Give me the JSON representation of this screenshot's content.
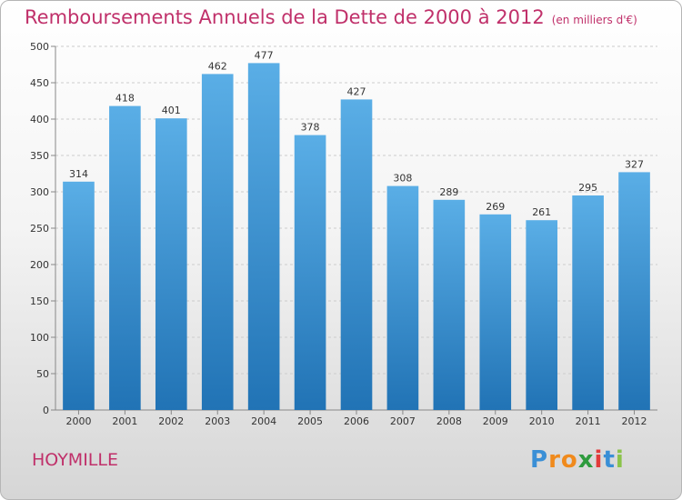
{
  "chart_data": {
    "type": "bar",
    "title": "Remboursements Annuels de la Dette de 2000 à 2012",
    "unit_label": "(en milliers d'€)",
    "categories": [
      "2000",
      "2001",
      "2002",
      "2003",
      "2004",
      "2005",
      "2006",
      "2007",
      "2008",
      "2009",
      "2010",
      "2011",
      "2012"
    ],
    "values": [
      314,
      418,
      401,
      462,
      477,
      378,
      427,
      308,
      289,
      269,
      261,
      295,
      327
    ],
    "ylim": [
      0,
      500
    ],
    "yticks": [
      0,
      50,
      100,
      150,
      200,
      250,
      300,
      350,
      400,
      450,
      500
    ],
    "grid": true,
    "xlabel": "",
    "ylabel": ""
  },
  "location": "HOYMILLE",
  "logo": {
    "text": "Proxiti",
    "letters": [
      "P",
      "r",
      "o",
      "x",
      "i",
      "t",
      "i"
    ],
    "colors": [
      "#3a8fd6",
      "#f08a1c",
      "#f08a1c",
      "#2e9b3e",
      "#e23b3b",
      "#3a8fd6",
      "#8bc34a"
    ]
  },
  "colors": {
    "title": "#c0306a",
    "bar_top": "#5aaee6",
    "bar_bottom": "#2173b5"
  }
}
